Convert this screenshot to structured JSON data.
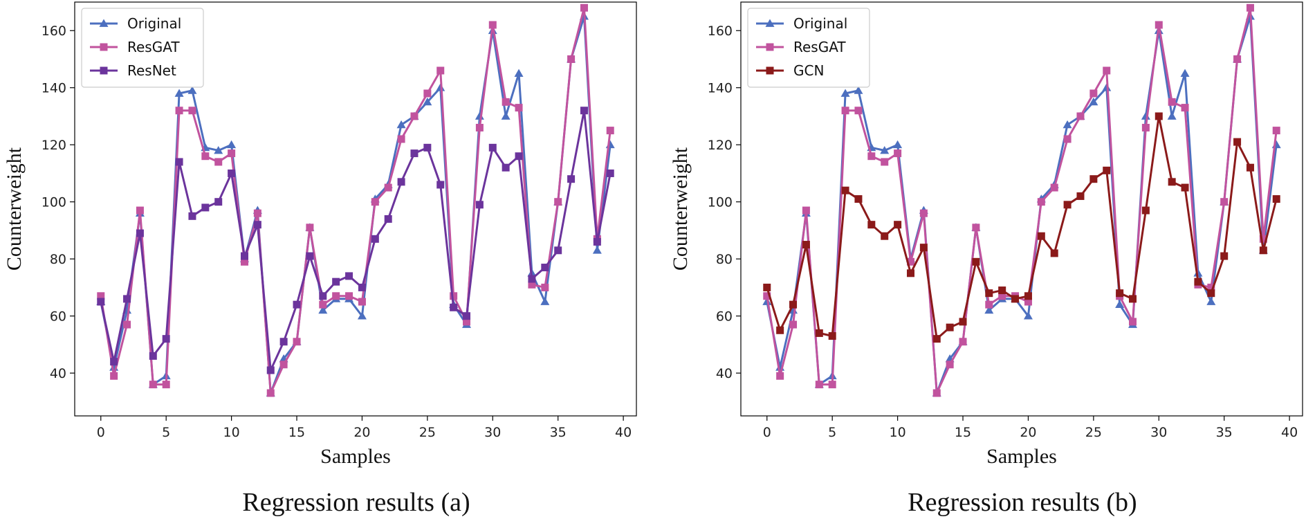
{
  "chart_data": [
    {
      "type": "line",
      "caption": "Regression results (a)",
      "xlabel": "Samples",
      "ylabel": "Counterweight",
      "xlim": [
        -2,
        41
      ],
      "ylim": [
        25,
        170
      ],
      "xticks": [
        "0",
        "5",
        "10",
        "15",
        "20",
        "25",
        "30",
        "35",
        "40"
      ],
      "yticks": [
        "40",
        "60",
        "80",
        "100",
        "120",
        "140",
        "160"
      ],
      "grid": false,
      "legend": "top-left",
      "series": [
        {
          "name": "Original",
          "color": "#4c6fbf",
          "marker": "triangle",
          "values": [
            65,
            42,
            62,
            96,
            36,
            39,
            138,
            139,
            119,
            118,
            120,
            80,
            97,
            33,
            45,
            51,
            91,
            62,
            66,
            66,
            60,
            101,
            106,
            127,
            130,
            135,
            140,
            64,
            57,
            130,
            160,
            130,
            145,
            75,
            65,
            100,
            150,
            165,
            83,
            120
          ]
        },
        {
          "name": "ResGAT",
          "color": "#c1539e",
          "marker": "square",
          "values": [
            67,
            39,
            57,
            97,
            36,
            36,
            132,
            132,
            116,
            114,
            117,
            79,
            96,
            33,
            43,
            51,
            91,
            64,
            67,
            67,
            65,
            100,
            105,
            122,
            130,
            138,
            146,
            67,
            58,
            126,
            162,
            135,
            133,
            71,
            70,
            100,
            150,
            168,
            87,
            125
          ]
        },
        {
          "name": "ResNet",
          "color": "#6b349c",
          "marker": "square",
          "values": [
            65,
            44,
            66,
            89,
            46,
            52,
            114,
            95,
            98,
            100,
            110,
            81,
            92,
            41,
            51,
            64,
            81,
            67,
            72,
            74,
            70,
            87,
            94,
            107,
            117,
            119,
            106,
            63,
            60,
            99,
            119,
            112,
            116,
            73,
            77,
            83,
            108,
            132,
            86,
            110
          ]
        }
      ]
    },
    {
      "type": "line",
      "caption": "Regression results (b)",
      "xlabel": "Samples",
      "ylabel": "Counterweight",
      "xlim": [
        -2,
        41
      ],
      "ylim": [
        25,
        170
      ],
      "xticks": [
        "0",
        "5",
        "10",
        "15",
        "20",
        "25",
        "30",
        "35",
        "40"
      ],
      "yticks": [
        "40",
        "60",
        "80",
        "100",
        "120",
        "140",
        "160"
      ],
      "grid": false,
      "legend": "top-left",
      "series": [
        {
          "name": "Original",
          "color": "#4c6fbf",
          "marker": "triangle",
          "values": [
            65,
            42,
            62,
            96,
            36,
            39,
            138,
            139,
            119,
            118,
            120,
            80,
            97,
            33,
            45,
            51,
            91,
            62,
            66,
            66,
            60,
            101,
            106,
            127,
            130,
            135,
            140,
            64,
            57,
            130,
            160,
            130,
            145,
            75,
            65,
            100,
            150,
            165,
            83,
            120
          ]
        },
        {
          "name": "ResGAT",
          "color": "#c1539e",
          "marker": "square",
          "values": [
            67,
            39,
            57,
            97,
            36,
            36,
            132,
            132,
            116,
            114,
            117,
            79,
            96,
            33,
            43,
            51,
            91,
            64,
            67,
            67,
            65,
            100,
            105,
            122,
            130,
            138,
            146,
            67,
            58,
            126,
            162,
            135,
            133,
            71,
            70,
            100,
            150,
            168,
            87,
            125
          ]
        },
        {
          "name": "GCN",
          "color": "#8b1a1a",
          "marker": "square",
          "values": [
            70,
            55,
            64,
            85,
            54,
            53,
            104,
            101,
            92,
            88,
            92,
            75,
            84,
            52,
            56,
            58,
            79,
            68,
            69,
            66,
            67,
            88,
            82,
            99,
            102,
            108,
            111,
            68,
            66,
            97,
            130,
            107,
            105,
            72,
            68,
            81,
            121,
            112,
            83,
            101
          ]
        }
      ]
    }
  ]
}
